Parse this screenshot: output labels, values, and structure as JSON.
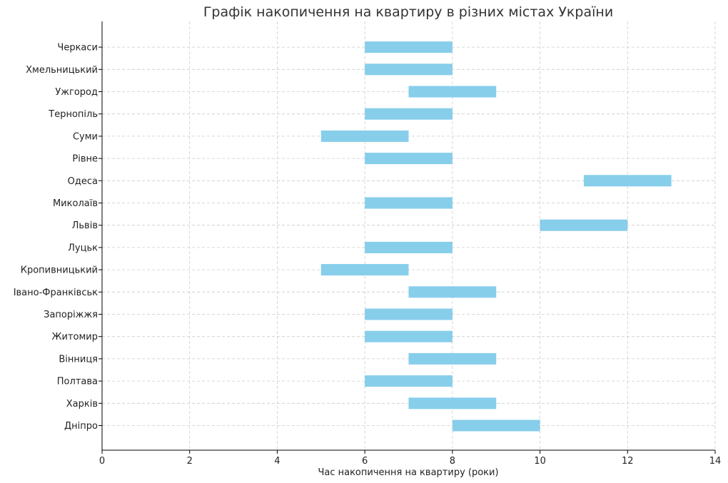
{
  "chart_data": {
    "type": "bar",
    "orientation": "horizontal",
    "title": "Графік накопичення на квартиру в різних містах України",
    "xlabel": "Час накопичення на квартиру (роки)",
    "ylabel": "",
    "xlim": [
      0,
      14
    ],
    "x_ticks": [
      0,
      2,
      4,
      6,
      8,
      10,
      12,
      14
    ],
    "grid": true,
    "bar_color": "#87CEEB",
    "categories": [
      "Дніпро",
      "Харків",
      "Полтава",
      "Вінниця",
      "Житомир",
      "Запоріжжя",
      "Івано-Франківськ",
      "Кропивницький",
      "Луцьк",
      "Львів",
      "Миколаїв",
      "Одеса",
      "Рівне",
      "Суми",
      "Тернопіль",
      "Ужгород",
      "Хмельницький",
      "Черкаси"
    ],
    "ranges": [
      [
        8,
        10
      ],
      [
        7,
        9
      ],
      [
        6,
        8
      ],
      [
        7,
        9
      ],
      [
        6,
        8
      ],
      [
        6,
        8
      ],
      [
        7,
        9
      ],
      [
        5,
        7
      ],
      [
        6,
        8
      ],
      [
        10,
        12
      ],
      [
        6,
        8
      ],
      [
        11,
        13
      ],
      [
        6,
        8
      ],
      [
        5,
        7
      ],
      [
        6,
        8
      ],
      [
        7,
        9
      ],
      [
        6,
        8
      ],
      [
        6,
        8
      ]
    ]
  }
}
